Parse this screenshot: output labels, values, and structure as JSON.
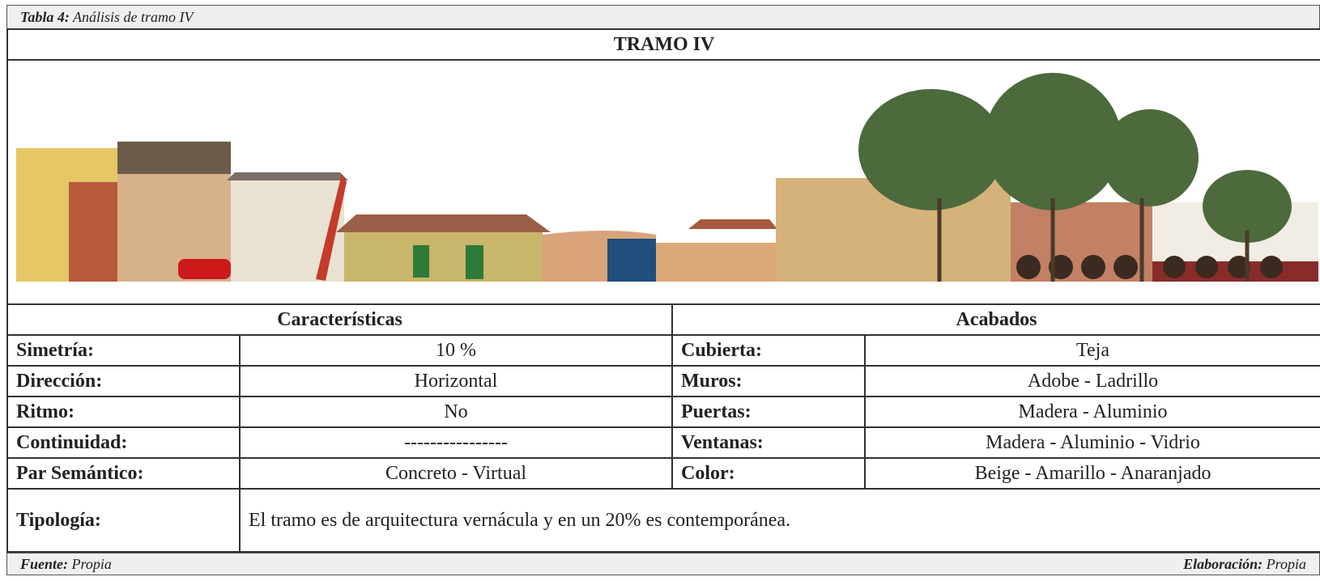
{
  "caption": {
    "label": "Tabla 4:",
    "text": "Análisis de tramo IV"
  },
  "table": {
    "title": "TRAMO IV",
    "headers": [
      "Características",
      "Acabados"
    ],
    "rows": [
      [
        "Simetría:",
        "10 %",
        "Cubierta:",
        "Teja"
      ],
      [
        "Dirección:",
        "Horizontal",
        "Muros:",
        "Adobe - Ladrillo"
      ],
      [
        "Ritmo:",
        "No",
        "Puertas:",
        "Madera - Aluminio"
      ],
      [
        "Continuidad:",
        "----------------",
        "Ventanas:",
        "Madera - Aluminio - Vidrio"
      ],
      [
        "Par Semántico:",
        "Concreto - Virtual",
        "Color:",
        "Beige - Amarillo - Anaranjado"
      ]
    ],
    "tipologia": {
      "label": "Tipología:",
      "text": "El tramo es de arquitectura vernácula y en un 20% es contemporánea."
    }
  },
  "footer": {
    "source_label": "Fuente:",
    "source": "Propia",
    "author_label": "Elaboración:",
    "author": "Propia"
  }
}
